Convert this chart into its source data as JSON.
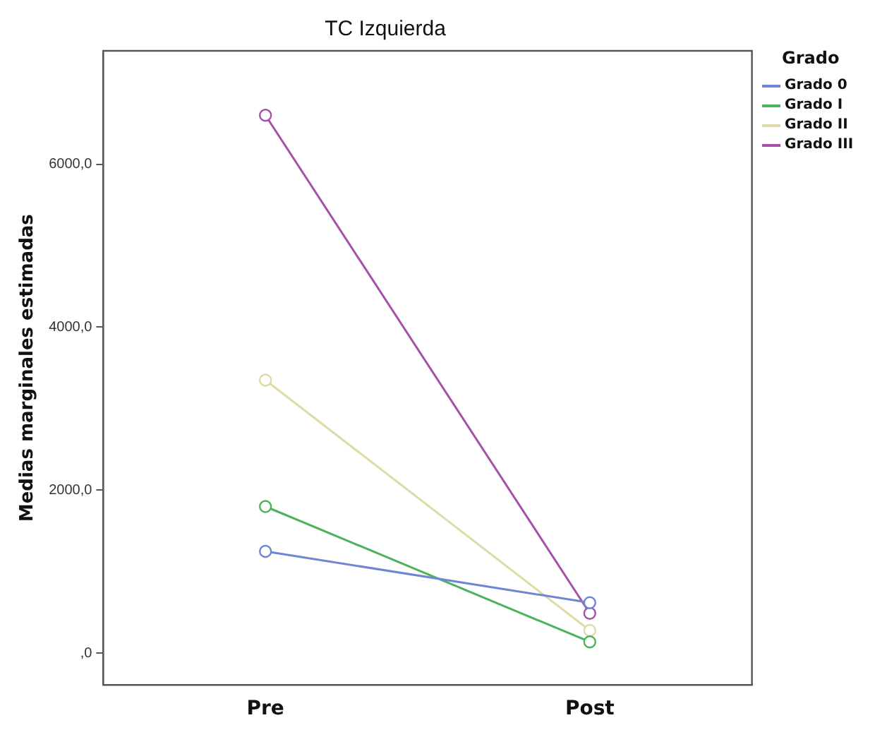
{
  "chart_data": {
    "type": "line",
    "title": "TC Izquierda",
    "ylabel": "Medias marginales estimadas",
    "legend_title": "Grado",
    "categories": [
      "Pre",
      "Post"
    ],
    "series": [
      {
        "name": "Grado 0",
        "color": "#6f86d4",
        "values": [
          1250,
          620
        ]
      },
      {
        "name": "Grado I",
        "color": "#4cb35a",
        "values": [
          1800,
          140
        ]
      },
      {
        "name": "Grado II",
        "color": "#dedca6",
        "values": [
          3350,
          280
        ]
      },
      {
        "name": "Grado III",
        "color": "#a750a8",
        "values": [
          6600,
          490
        ]
      }
    ],
    "ylim": [
      -390,
      7390
    ],
    "yticks": [
      {
        "value": 0,
        "label": ",0"
      },
      {
        "value": 2000,
        "label": "2000,0"
      },
      {
        "value": 4000,
        "label": "4000,0"
      },
      {
        "value": 6000,
        "label": "6000,0"
      }
    ],
    "grid": false,
    "legend": "top right",
    "marker": "circle",
    "line_style": "solid"
  }
}
